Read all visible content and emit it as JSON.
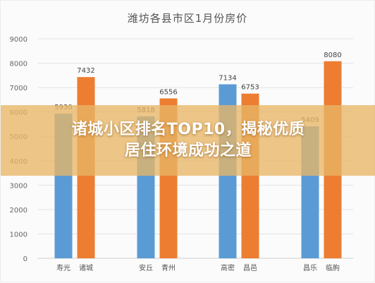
{
  "chart_data": {
    "type": "bar",
    "title": "潍坊各县市区1月份房价",
    "categories": [
      "寿光",
      "诸城",
      "安丘",
      "青州",
      "高密",
      "昌邑",
      "昌乐",
      "临朐"
    ],
    "values": [
      5930,
      7432,
      5818,
      6556,
      7134,
      6753,
      5409,
      8080
    ],
    "bar_colors": [
      "#5b9bd5",
      "#ed7d31",
      "#5b9bd5",
      "#ed7d31",
      "#5b9bd5",
      "#ed7d31",
      "#5b9bd5",
      "#ed7d31"
    ],
    "ylim": [
      0,
      9000
    ],
    "yticks": [
      0,
      1000,
      2000,
      3000,
      4000,
      5000,
      6000,
      7000,
      8000,
      9000
    ],
    "grid": true,
    "xlabel": "",
    "ylabel": ""
  },
  "banner": {
    "line1": "诸城小区排名TOP10，揭秘优质",
    "line2": "居住环境成功之道"
  }
}
